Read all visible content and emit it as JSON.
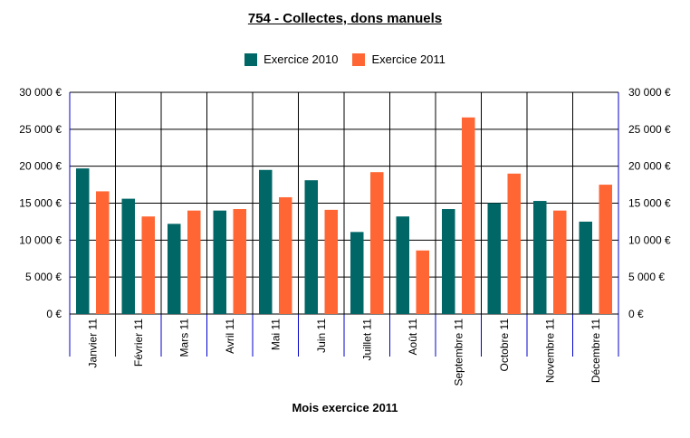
{
  "chart_data": {
    "type": "bar",
    "title": "754 - Collectes, dons manuels",
    "xlabel": "Mois exercice 2011",
    "ylabel": "",
    "ylim": [
      0,
      30000
    ],
    "yticks": [
      0,
      5000,
      10000,
      15000,
      20000,
      25000,
      30000
    ],
    "ytick_labels": [
      "0 €",
      "5 000 €",
      "10 000 €",
      "15 000 €",
      "20 000 €",
      "25 000 €",
      "30 000 €"
    ],
    "categories": [
      "Janvier 11",
      "Février 11",
      "Mars 11",
      "Avril 11",
      "Mai 11",
      "Juin 11",
      "Juillet 11",
      "Août 11",
      "Septembre 11",
      "Octobre 11",
      "Novembre 11",
      "Décembre 11"
    ],
    "series": [
      {
        "name": "Exercice 2010",
        "color": "#006666",
        "values": [
          19700,
          15600,
          12200,
          14000,
          19500,
          18100,
          11100,
          13200,
          14200,
          15000,
          15300,
          12500
        ]
      },
      {
        "name": "Exercice 2011",
        "color": "#FF6633",
        "values": [
          16600,
          13200,
          14000,
          14200,
          15800,
          14100,
          19200,
          8600,
          26600,
          19000,
          14000,
          17500
        ]
      }
    ],
    "legend_position": "top",
    "grid": true
  }
}
